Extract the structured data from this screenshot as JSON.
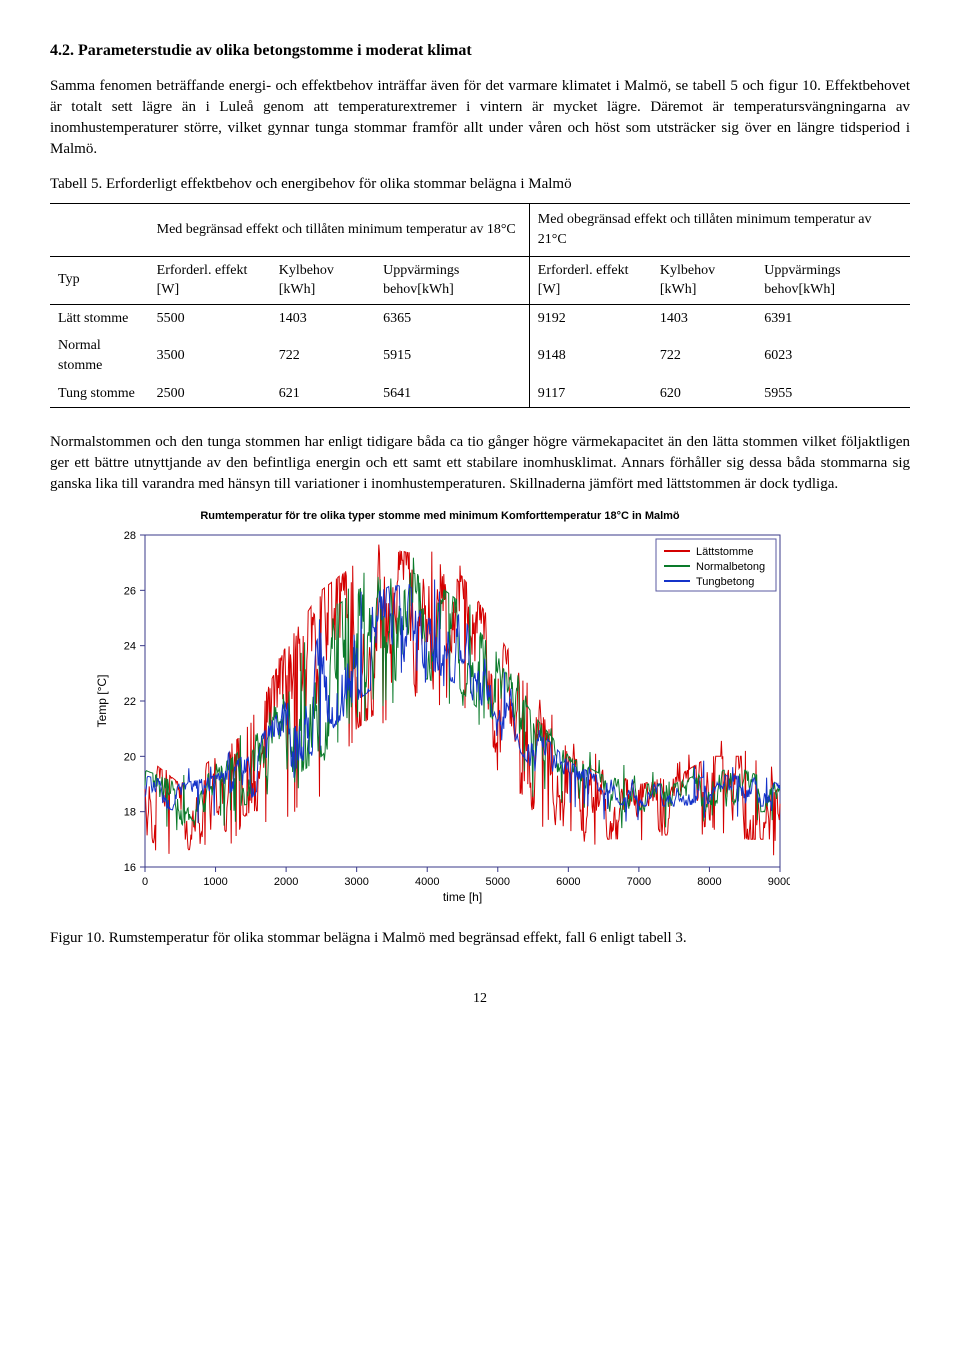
{
  "heading": "4.2. Parameterstudie av olika betongstomme i moderat klimat",
  "para1": "Samma fenomen beträffande energi- och effektbehov inträffar även för det varmare klimatet i Malmö, se tabell 5 och figur 10. Effektbehovet är totalt sett lägre än i Luleå genom att temperaturextremer i vintern är mycket lägre. Däremot är temperatursvängningarna av inomhustemperaturer större, vilket gynnar tunga stommar framför allt under våren och höst som utsträcker sig över en längre tidsperiod i Malmö.",
  "table_caption": "Tabell 5. Erforderligt effektbehov och energibehov för olika stommar belägna i Malmö",
  "group_left": "Med begränsad effekt och tillåten minimum temperatur av 18°C",
  "group_right": "Med obegränsad effekt och tillåten minimum temperatur av 21°C",
  "col_typ": "Typ",
  "col_eff": "Erforderl. effekt [W]",
  "col_kyl": "Kylbehov [kWh]",
  "col_upp": "Uppvärmings behov[kWh]",
  "rows": [
    {
      "typ": "Lätt stomme",
      "a": "5500",
      "b": "1403",
      "c": "6365",
      "d": "9192",
      "e": "1403",
      "f": "6391"
    },
    {
      "typ": "Normal stomme",
      "a": "3500",
      "b": "722",
      "c": "5915",
      "d": "9148",
      "e": "722",
      "f": "6023"
    },
    {
      "typ": "Tung stomme",
      "a": "2500",
      "b": "621",
      "c": "5641",
      "d": "9117",
      "e": "620",
      "f": "5955"
    }
  ],
  "para2": "Normalstommen och den tunga stommen har enligt tidigare båda ca tio gånger högre värmekapacitet än den lätta stommen vilket följaktligen ger ett bättre utnyttjande av den befintliga energin och ett samt ett stabilare inomhusklimat. Annars förhåller sig dessa båda stommarna sig ganska lika till varandra med hänsyn till variationer i inomhustemperaturen. Skillnaderna jämfört med lättstommen är dock tydliga.",
  "chart": {
    "type": "line",
    "title": "Rumtemperatur för tre olika typer stomme med minimum Komforttemperatur 18°C in Malmö",
    "xlabel": "time [h]",
    "ylabel": "Temp [°C]",
    "xlim": [
      0,
      9000
    ],
    "ylim": [
      16,
      28
    ],
    "xticks": [
      0,
      1000,
      2000,
      3000,
      4000,
      5000,
      6000,
      7000,
      8000,
      9000
    ],
    "yticks": [
      16,
      18,
      20,
      22,
      24,
      26,
      28
    ],
    "background_color": "#ffffff",
    "axis_color": "#3a3a88",
    "colors": {
      "latt": "#d40000",
      "normal": "#0a7a2a",
      "tung": "#1433c9"
    },
    "legend": {
      "items": [
        "Lättstomme",
        "Normalbetong",
        "Tungbetong"
      ],
      "border_color": "#5a5aa0",
      "position": "top-right"
    },
    "title_fontsize": 11,
    "label_fontsize": 12,
    "line_width": 1,
    "envelope": {
      "latt_high": [
        20,
        19,
        20,
        21,
        24,
        26,
        27,
        27.5,
        27.2,
        26.5,
        24.5,
        22,
        20,
        19.5,
        19,
        19.2,
        20,
        20,
        19
      ],
      "latt_low": [
        17,
        16.5,
        17,
        18,
        18.2,
        19,
        21,
        22,
        22.5,
        22,
        20,
        18,
        17.5,
        17,
        17,
        17.2,
        17.5,
        17,
        17
      ],
      "normal_high": [
        19.5,
        19,
        19.5,
        20.5,
        22.5,
        25,
        26,
        26.8,
        26.5,
        25.5,
        23.5,
        21.5,
        20,
        19.3,
        19,
        19,
        19.5,
        19.5,
        19
      ],
      "normal_low": [
        18,
        17.5,
        18,
        18.3,
        19,
        20,
        21.5,
        22.5,
        22.8,
        22.3,
        21,
        19,
        18.5,
        18,
        18,
        18,
        18,
        18,
        18
      ],
      "tung_high": [
        19.3,
        19,
        19.3,
        20.2,
        22,
        24.5,
        25.5,
        26.2,
        26,
        25,
        23.2,
        21.2,
        19.8,
        19.2,
        19,
        19,
        19.3,
        19.3,
        19
      ],
      "tung_low": [
        18.3,
        18,
        18.2,
        18.5,
        19.3,
        20.5,
        22,
        23,
        23.2,
        22.5,
        21.3,
        19.5,
        18.8,
        18.3,
        18.2,
        18.2,
        18.3,
        18.2,
        18.2
      ]
    }
  },
  "fig_caption": "Figur 10. Rumstemperatur för olika stommar belägna i Malmö med begränsad effekt, fall 6 enligt tabell 3.",
  "page_number": "12"
}
